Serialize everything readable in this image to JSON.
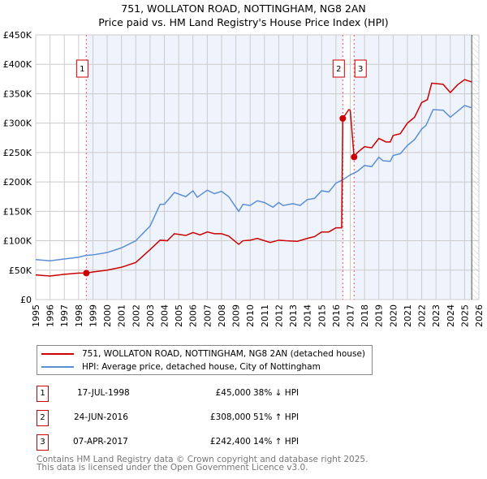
{
  "chart_data": {
    "type": "line",
    "title": "751, WOLLATON ROAD, NOTTINGHAM, NG8 2AN",
    "subtitle": "Price paid vs. HM Land Registry's House Price Index (HPI)",
    "xlim": [
      1995,
      2026
    ],
    "ylim": [
      0,
      450000
    ],
    "y_ticks": [
      {
        "v": 0,
        "label": "£0"
      },
      {
        "v": 50000,
        "label": "£50K"
      },
      {
        "v": 100000,
        "label": "£100K"
      },
      {
        "v": 150000,
        "label": "£150K"
      },
      {
        "v": 200000,
        "label": "£200K"
      },
      {
        "v": 250000,
        "label": "£250K"
      },
      {
        "v": 300000,
        "label": "£300K"
      },
      {
        "v": 350000,
        "label": "£350K"
      },
      {
        "v": 400000,
        "label": "£400K"
      },
      {
        "v": 450000,
        "label": "£450K"
      }
    ],
    "x_ticks": [
      "1995",
      "1996",
      "1997",
      "1998",
      "1999",
      "2000",
      "2001",
      "2002",
      "2003",
      "2004",
      "2005",
      "2006",
      "2007",
      "2008",
      "2009",
      "2010",
      "2011",
      "2012",
      "2013",
      "2014",
      "2015",
      "2016",
      "2017",
      "2018",
      "2019",
      "2020",
      "2021",
      "2022",
      "2023",
      "2024",
      "2025",
      "2026"
    ],
    "grid": true,
    "series": [
      {
        "name": "751, WOLLATON ROAD, NOTTINGHAM, NG8 2AN (detached house)",
        "color": "#cc0000",
        "x": [
          1995,
          1996,
          1997,
          1998,
          1998.54,
          1999,
          2000,
          2001,
          2002,
          2003,
          2003.7,
          2004.2,
          2004.7,
          2005.5,
          2006,
          2006.5,
          2007,
          2007.5,
          2008,
          2008.5,
          2009.2,
          2009.5,
          2010,
          2010.5,
          2011.4,
          2012,
          2012.5,
          2013.3,
          2014,
          2014.5,
          2015,
          2015.5,
          2016,
          2016.4,
          2016.48,
          2016.9,
          2017.0,
          2017.27,
          2017.5,
          2018,
          2018.5,
          2019,
          2019.5,
          2019.8,
          2020,
          2020.5,
          2021,
          2021.5,
          2022,
          2022.4,
          2022.7,
          2023.5,
          2024,
          2024.5,
          2025,
          2025.5
        ],
        "y": [
          42,
          40,
          43,
          45,
          45,
          47,
          50,
          55,
          63,
          85,
          101,
          100,
          112,
          109,
          114,
          110,
          115,
          112,
          112,
          108,
          94,
          100,
          101,
          104,
          97,
          101,
          100,
          99,
          104,
          107,
          115,
          115,
          122,
          122,
          308,
          323,
          322,
          242.4,
          250,
          260,
          258,
          274,
          268,
          268,
          279,
          282,
          300,
          310,
          335,
          340,
          368,
          366,
          352,
          365,
          374,
          370
        ]
      },
      {
        "name": "HPI: Average price, detached house, City of Nottingham",
        "color": "#5b8fd4",
        "x": [
          1995,
          1996,
          1997,
          1998,
          1998.5,
          1999,
          2000,
          2001,
          2002,
          2003,
          2003.7,
          2004,
          2004.7,
          2005.5,
          2006,
          2006.3,
          2007,
          2007.5,
          2008,
          2008.5,
          2009.2,
          2009.5,
          2010,
          2010.5,
          2011,
          2011.6,
          2012,
          2012.3,
          2013,
          2013.5,
          2014,
          2014.5,
          2015,
          2015.5,
          2016,
          2016.5,
          2017,
          2017.5,
          2018,
          2018.5,
          2019,
          2019.3,
          2019.8,
          2020,
          2020.5,
          2021,
          2021.5,
          2022,
          2022.3,
          2022.8,
          2023.5,
          2024,
          2024.5,
          2025,
          2025.5
        ],
        "y": [
          68,
          66,
          69,
          72,
          75,
          76,
          80,
          88,
          100,
          125,
          162,
          162,
          182,
          175,
          185,
          174,
          186,
          180,
          184,
          175,
          150,
          162,
          160,
          168,
          165,
          157,
          165,
          160,
          163,
          160,
          170,
          172,
          185,
          183,
          198,
          204,
          212,
          218,
          228,
          226,
          242,
          236,
          235,
          245,
          248,
          262,
          272,
          290,
          296,
          323,
          322,
          310,
          320,
          330,
          326
        ]
      }
    ],
    "y_unit_multiplier": 1000,
    "annotations": [
      {
        "label": "1",
        "x": 1998.54,
        "y": 45000
      },
      {
        "label": "2",
        "x": 2016.48,
        "y": 308000
      },
      {
        "label": "3",
        "x": 2017.27,
        "y": 242400
      }
    ],
    "legend_placement": "below"
  },
  "legend": [
    "751, WOLLATON ROAD, NOTTINGHAM, NG8 2AN (detached house)",
    "HPI: Average price, detached house, City of Nottingham"
  ],
  "transactions": [
    {
      "num": "1",
      "date": "17-JUL-1998",
      "price": "£45,000",
      "hpi": "38% ↓ HPI"
    },
    {
      "num": "2",
      "date": "24-JUN-2016",
      "price": "£308,000",
      "hpi": "51% ↑ HPI"
    },
    {
      "num": "3",
      "date": "07-APR-2017",
      "price": "£242,400",
      "hpi": "14% ↑ HPI"
    }
  ],
  "footer": [
    "Contains HM Land Registry data © Crown copyright and database right 2025.",
    "This data is licensed under the Open Government Licence v3.0."
  ]
}
